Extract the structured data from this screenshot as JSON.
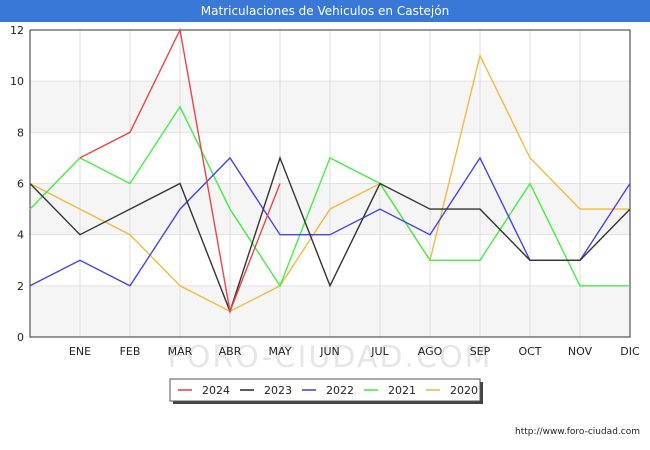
{
  "chart_data": {
    "type": "line",
    "title": "Matriculaciones de Vehiculos en Castejón",
    "categories": [
      "",
      "ENE",
      "FEB",
      "MAR",
      "ABR",
      "MAY",
      "JUN",
      "JUL",
      "AGO",
      "SEP",
      "OCT",
      "NOV",
      "DIC"
    ],
    "ylim": [
      0,
      12
    ],
    "yticks": [
      "0",
      "2",
      "4",
      "6",
      "8",
      "10",
      "12"
    ],
    "series": [
      {
        "name": "2024",
        "color": "#ee4444",
        "values": [
          null,
          7,
          8,
          12,
          1,
          6,
          null,
          null,
          null,
          null,
          null,
          null,
          null
        ]
      },
      {
        "name": "2023",
        "color": "#333333",
        "values": [
          6,
          4,
          5,
          6,
          1,
          7,
          2,
          6,
          5,
          5,
          3,
          3,
          5
        ]
      },
      {
        "name": "2022",
        "color": "#4444ee",
        "values": [
          2,
          3,
          2,
          5,
          7,
          4,
          4,
          5,
          4,
          7,
          3,
          3,
          6
        ]
      },
      {
        "name": "2021",
        "color": "#44ee44",
        "values": [
          5,
          7,
          6,
          9,
          5,
          2,
          7,
          6,
          3,
          3,
          6,
          2,
          2
        ]
      },
      {
        "name": "2020",
        "color": "#f4b942",
        "values": [
          6,
          5,
          4,
          2,
          1,
          2,
          5,
          6,
          3,
          11,
          7,
          5,
          5
        ]
      }
    ],
    "grid": true,
    "legend_position": "bottom-center",
    "watermark": "FORO-CIUDAD.COM"
  },
  "footer": {
    "url": "http://www.foro-ciudad.com"
  }
}
